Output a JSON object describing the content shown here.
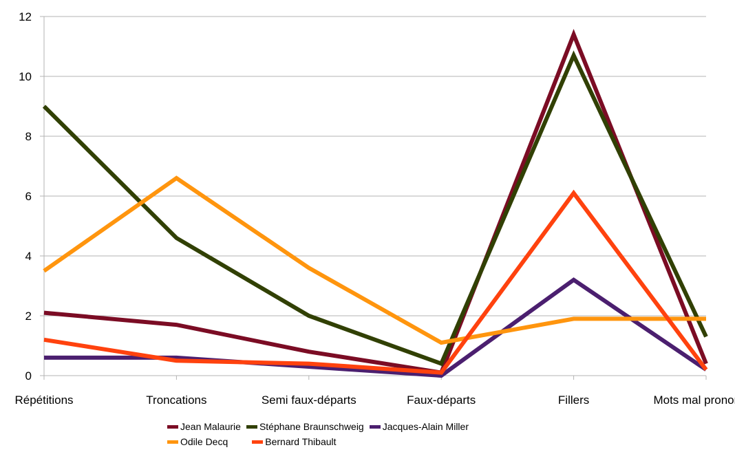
{
  "chart_data": {
    "type": "line",
    "title": "",
    "xlabel": "",
    "ylabel": "",
    "categories": [
      "Répétitions",
      "Troncations",
      "Semi faux-départs",
      "Faux-départs",
      "Fillers",
      "Mots mal prononcés"
    ],
    "ylim": [
      0,
      12
    ],
    "yticks": [
      0,
      2,
      4,
      6,
      8,
      10,
      12
    ],
    "grid": true,
    "legend_position": "bottom",
    "series": [
      {
        "name": "Jean Malaurie",
        "color": "#7b0c24",
        "values": [
          2.1,
          1.7,
          0.8,
          0.1,
          11.4,
          0.4
        ]
      },
      {
        "name": "Stéphane Braunschweig",
        "color": "#314004",
        "values": [
          9.0,
          4.6,
          2.0,
          0.4,
          10.7,
          1.3
        ]
      },
      {
        "name": "Jacques-Alain Miller",
        "color": "#4b1f6f",
        "values": [
          0.6,
          0.6,
          0.3,
          0.0,
          3.2,
          0.2
        ]
      },
      {
        "name": "Odile Decq",
        "color": "#ff950e",
        "values": [
          3.5,
          6.6,
          3.6,
          1.1,
          1.9,
          1.9
        ]
      },
      {
        "name": "Bernard Thibault",
        "color": "#ff420e",
        "values": [
          1.2,
          0.5,
          0.4,
          0.1,
          6.1,
          0.2
        ]
      }
    ]
  }
}
